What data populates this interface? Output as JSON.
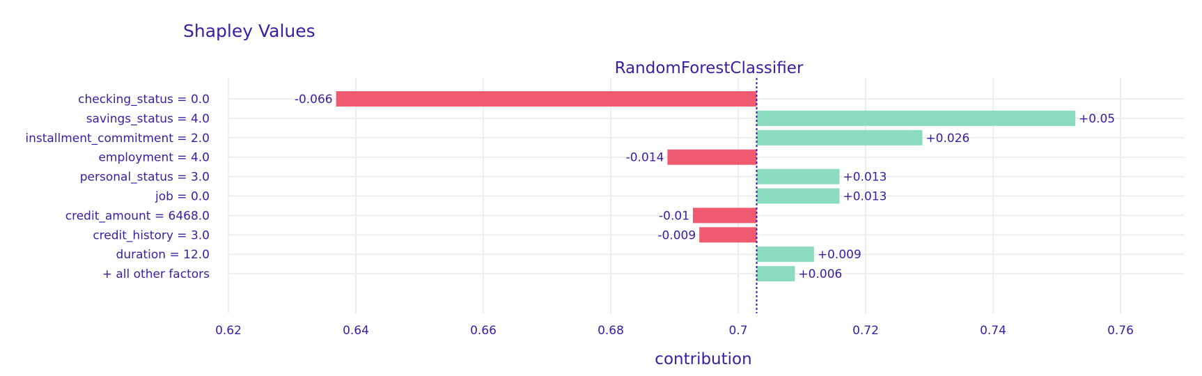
{
  "chart_data": {
    "type": "bar",
    "orientation": "horizontal",
    "title": "Shapley Values",
    "subtitle": "RandomForestClassifier",
    "xlabel": "contribution",
    "ylabel": "",
    "xlim": [
      0.62,
      0.77
    ],
    "baseline": 0.7029,
    "x_ticks": [
      0.62,
      0.64,
      0.66,
      0.68,
      0.7,
      0.72,
      0.74,
      0.76
    ],
    "x_tick_labels": [
      "0.62",
      "0.64",
      "0.66",
      "0.68",
      "0.7",
      "0.72",
      "0.74",
      "0.76"
    ],
    "grid": true,
    "colors": {
      "positive": "#8bdcbe",
      "negative": "#f05a71",
      "text": "#371ea3",
      "grid": "#eeeeee",
      "baseline": "#371ea3"
    },
    "categories": [
      "checking_status = 0.0",
      "savings_status = 4.0",
      "installment_commitment = 2.0",
      "employment = 4.0",
      "personal_status = 3.0",
      "job = 0.0",
      "credit_amount = 6468.0",
      "credit_history = 3.0",
      "duration = 12.0",
      "+ all other factors"
    ],
    "values": [
      -0.066,
      0.05,
      0.026,
      -0.014,
      0.013,
      0.013,
      -0.01,
      -0.009,
      0.009,
      0.006
    ],
    "labels": [
      "-0.066",
      "+0.05",
      "+0.026",
      "-0.014",
      "+0.013",
      "+0.013",
      "-0.01",
      "-0.009",
      "+0.009",
      "+0.006"
    ]
  }
}
